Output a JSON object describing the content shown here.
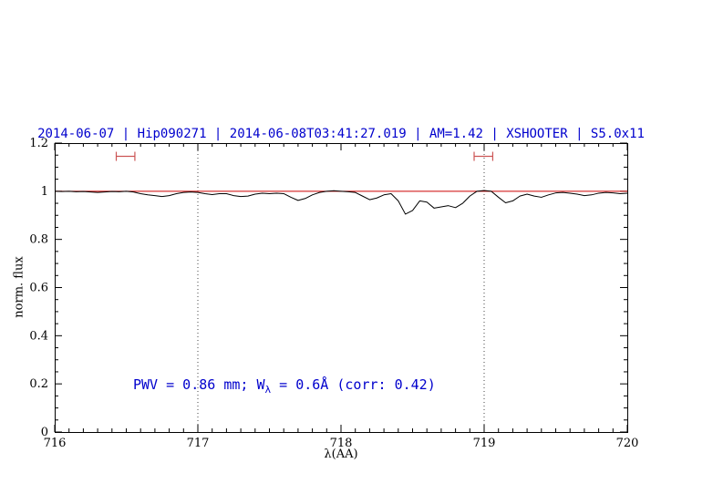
{
  "header": {
    "title": "2014-06-07 | Hip090271 | 2014-06-08T03:41:27.019 | AM=1.42 | XSHOOTER | S5.0x11"
  },
  "annotation": {
    "prefix": "PWV = 0.86 mm; W",
    "subscript": "λ",
    "suffix": " = 0.6Å (corr: 0.42)",
    "full_text": "PWV = 0.86 mm; Wλ = 0.6Å (corr: 0.42)"
  },
  "chart_data": {
    "type": "line",
    "title": "2014-06-07 | Hip090271 | 2014-06-08T03:41:27.019 | AM=1.42 | XSHOOTER | S5.0x11",
    "xlabel": "λ(AA)",
    "ylabel": "norm. flux",
    "xlim": [
      716,
      720
    ],
    "ylim": [
      0,
      1.2
    ],
    "xticks": [
      716,
      717,
      718,
      719,
      720
    ],
    "xtick_labels": [
      "716",
      "717",
      "718",
      "719",
      "720"
    ],
    "yticks": [
      0,
      0.2,
      0.4,
      0.6,
      0.8,
      1,
      1.2
    ],
    "ytick_labels": [
      "0",
      "0.2",
      "0.4",
      "0.6",
      "0.8",
      "1",
      "1.2"
    ],
    "x_minor_step": 0.1,
    "y_minor_step": 0.05,
    "dotted_vlines": [
      717,
      719
    ],
    "reference_line": {
      "y": 1.0,
      "color": "#cc0000"
    },
    "interval_markers": [
      {
        "x_start": 716.43,
        "x_end": 716.56,
        "y": 1.145
      },
      {
        "x_start": 718.93,
        "x_end": 719.06,
        "y": 1.145
      }
    ],
    "colors": {
      "spectrum": "#000000",
      "reference_line": "#cc0000",
      "title": "#0000cd",
      "annotation": "#0000cd",
      "markers": "#cc5555",
      "frame": "#000000"
    },
    "series": [
      {
        "name": "spectrum",
        "color": "#000000",
        "x": [
          716.0,
          716.05,
          716.1,
          716.15,
          716.2,
          716.25,
          716.3,
          716.35,
          716.4,
          716.45,
          716.5,
          716.55,
          716.6,
          716.65,
          716.7,
          716.75,
          716.8,
          716.85,
          716.9,
          716.95,
          717.0,
          717.05,
          717.1,
          717.15,
          717.2,
          717.25,
          717.3,
          717.35,
          717.4,
          717.45,
          717.5,
          717.55,
          717.6,
          717.65,
          717.7,
          717.75,
          717.8,
          717.85,
          717.9,
          717.95,
          718.0,
          718.05,
          718.1,
          718.15,
          718.2,
          718.25,
          718.3,
          718.35,
          718.4,
          718.45,
          718.5,
          718.55,
          718.6,
          718.65,
          718.7,
          718.75,
          718.8,
          718.85,
          718.9,
          718.95,
          719.0,
          719.05,
          719.1,
          719.15,
          719.2,
          719.25,
          719.3,
          719.35,
          719.4,
          719.45,
          719.5,
          719.55,
          719.6,
          719.65,
          719.7,
          719.75,
          719.8,
          719.85,
          719.9,
          719.95,
          720.0
        ],
        "y": [
          1.0,
          0.999,
          1.0,
          0.998,
          0.999,
          0.997,
          0.995,
          0.997,
          0.999,
          0.998,
          1.0,
          0.997,
          0.99,
          0.985,
          0.982,
          0.978,
          0.982,
          0.99,
          0.995,
          0.997,
          0.995,
          0.99,
          0.986,
          0.99,
          0.99,
          0.982,
          0.978,
          0.98,
          0.988,
          0.992,
          0.99,
          0.992,
          0.99,
          0.975,
          0.962,
          0.97,
          0.985,
          0.995,
          1.0,
          1.002,
          1.0,
          0.998,
          0.995,
          0.98,
          0.965,
          0.972,
          0.985,
          0.99,
          0.96,
          0.905,
          0.92,
          0.96,
          0.955,
          0.93,
          0.935,
          0.94,
          0.932,
          0.95,
          0.98,
          1.0,
          1.003,
          1.0,
          0.975,
          0.952,
          0.96,
          0.98,
          0.988,
          0.98,
          0.975,
          0.985,
          0.993,
          0.995,
          0.992,
          0.988,
          0.982,
          0.985,
          0.992,
          0.995,
          0.993,
          0.99,
          0.992
        ]
      }
    ]
  }
}
